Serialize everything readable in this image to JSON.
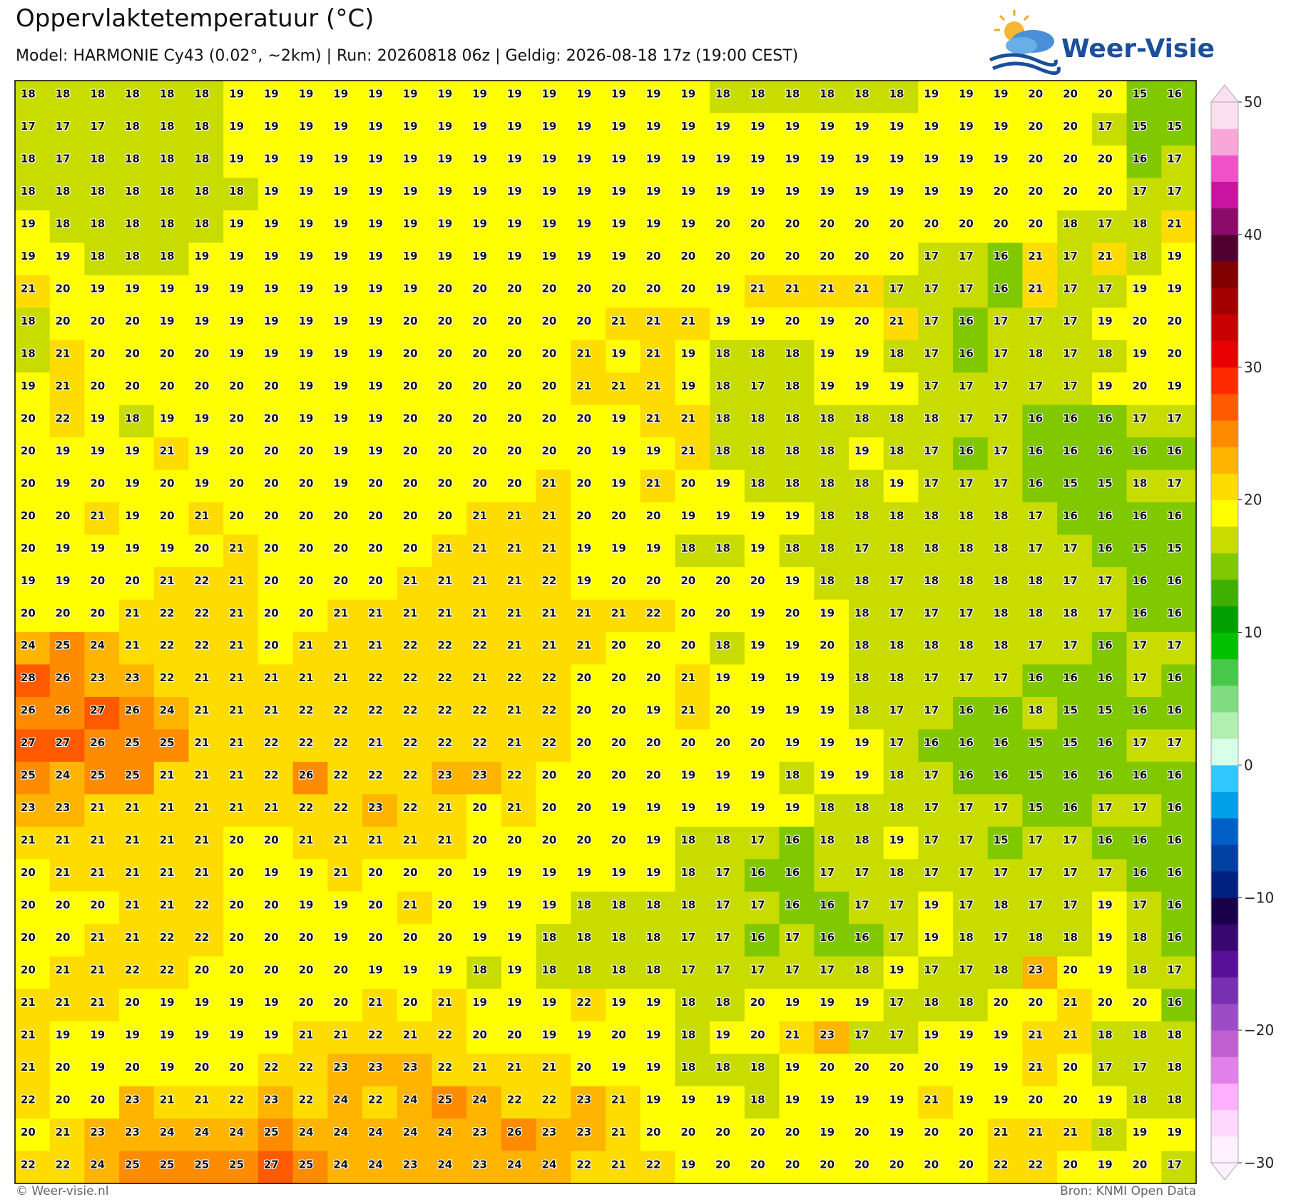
{
  "header": {
    "title": "Oppervlaktetemperatuur (°C)",
    "subtitle": "Model: HARMONIE Cy43 (0.02°, ~2km)  |  Run: 20260818 06z  |  Geldig: 2026-08-18 17z (19:00 CEST)",
    "logo": "Weer-Visie"
  },
  "grid": {
    "values": [
      [
        18,
        18,
        18,
        18,
        18,
        18,
        19,
        19,
        19,
        19,
        19,
        19,
        19,
        19,
        19,
        19,
        19,
        19,
        19,
        19,
        18,
        18,
        18,
        18,
        18,
        18,
        19,
        19,
        19,
        20,
        20,
        20,
        15,
        16
      ],
      [
        17,
        17,
        17,
        18,
        18,
        18,
        19,
        19,
        19,
        19,
        19,
        19,
        19,
        19,
        19,
        19,
        19,
        19,
        19,
        19,
        19,
        19,
        19,
        19,
        19,
        19,
        19,
        19,
        19,
        20,
        20,
        17,
        15,
        15
      ],
      [
        18,
        17,
        18,
        18,
        18,
        18,
        19,
        19,
        19,
        19,
        19,
        19,
        19,
        19,
        19,
        19,
        19,
        19,
        19,
        19,
        19,
        19,
        19,
        19,
        19,
        19,
        19,
        19,
        19,
        20,
        20,
        20,
        16,
        17
      ],
      [
        18,
        18,
        18,
        18,
        18,
        18,
        18,
        19,
        19,
        19,
        19,
        19,
        19,
        19,
        19,
        19,
        19,
        19,
        19,
        19,
        19,
        19,
        19,
        19,
        19,
        19,
        19,
        19,
        20,
        20,
        20,
        20,
        17,
        17
      ],
      [
        19,
        18,
        18,
        18,
        18,
        18,
        19,
        19,
        19,
        19,
        19,
        19,
        19,
        19,
        19,
        19,
        19,
        19,
        19,
        19,
        20,
        20,
        20,
        20,
        20,
        20,
        20,
        20,
        20,
        20,
        18,
        17,
        18,
        21
      ],
      [
        19,
        19,
        18,
        18,
        18,
        19,
        19,
        19,
        19,
        19,
        19,
        19,
        19,
        19,
        19,
        19,
        19,
        19,
        20,
        20,
        20,
        20,
        20,
        20,
        20,
        20,
        17,
        17,
        16,
        21,
        17,
        21,
        18,
        19
      ],
      [
        21,
        20,
        19,
        19,
        19,
        19,
        19,
        19,
        19,
        19,
        19,
        19,
        20,
        20,
        20,
        20,
        20,
        20,
        20,
        20,
        19,
        21,
        21,
        21,
        21,
        17,
        17,
        17,
        16,
        21,
        17,
        17,
        19,
        19
      ],
      [
        18,
        20,
        20,
        20,
        19,
        19,
        19,
        19,
        19,
        19,
        19,
        20,
        20,
        20,
        20,
        20,
        20,
        21,
        21,
        21,
        19,
        19,
        20,
        19,
        20,
        21,
        17,
        16,
        17,
        17,
        17,
        19,
        20,
        20
      ],
      [
        18,
        21,
        20,
        20,
        20,
        20,
        19,
        19,
        19,
        19,
        19,
        20,
        20,
        20,
        20,
        20,
        21,
        19,
        21,
        19,
        18,
        18,
        18,
        19,
        19,
        18,
        17,
        16,
        17,
        18,
        17,
        18,
        19,
        20
      ],
      [
        19,
        21,
        20,
        20,
        20,
        20,
        20,
        20,
        19,
        19,
        19,
        20,
        20,
        20,
        20,
        20,
        21,
        21,
        21,
        19,
        18,
        17,
        18,
        19,
        19,
        19,
        17,
        17,
        17,
        17,
        17,
        19,
        20,
        19
      ],
      [
        20,
        22,
        19,
        18,
        19,
        19,
        20,
        20,
        19,
        19,
        19,
        20,
        20,
        20,
        20,
        20,
        20,
        19,
        21,
        21,
        18,
        18,
        18,
        18,
        18,
        18,
        18,
        17,
        17,
        16,
        16,
        16,
        17,
        17
      ],
      [
        20,
        19,
        19,
        19,
        21,
        19,
        20,
        20,
        20,
        19,
        19,
        20,
        20,
        20,
        20,
        20,
        20,
        19,
        19,
        21,
        18,
        18,
        18,
        18,
        19,
        18,
        17,
        16,
        17,
        16,
        16,
        16,
        16,
        16
      ],
      [
        20,
        19,
        20,
        19,
        20,
        19,
        20,
        20,
        20,
        19,
        20,
        20,
        20,
        20,
        20,
        21,
        20,
        19,
        21,
        20,
        19,
        18,
        18,
        18,
        18,
        19,
        17,
        17,
        17,
        16,
        15,
        15,
        18,
        17
      ],
      [
        20,
        20,
        21,
        19,
        20,
        21,
        20,
        20,
        20,
        20,
        20,
        20,
        20,
        21,
        21,
        21,
        20,
        20,
        20,
        19,
        19,
        19,
        19,
        18,
        18,
        18,
        18,
        18,
        18,
        17,
        16,
        16,
        16,
        16
      ],
      [
        20,
        19,
        19,
        19,
        19,
        20,
        21,
        20,
        20,
        20,
        20,
        20,
        21,
        21,
        21,
        21,
        19,
        19,
        19,
        18,
        18,
        19,
        18,
        18,
        17,
        18,
        18,
        18,
        18,
        17,
        17,
        16,
        15,
        15
      ],
      [
        19,
        19,
        20,
        20,
        21,
        22,
        21,
        20,
        20,
        20,
        20,
        21,
        21,
        21,
        21,
        22,
        19,
        20,
        20,
        20,
        20,
        20,
        19,
        18,
        18,
        17,
        18,
        18,
        18,
        18,
        17,
        17,
        16,
        16
      ],
      [
        20,
        20,
        20,
        21,
        22,
        22,
        21,
        20,
        20,
        21,
        21,
        21,
        21,
        21,
        21,
        21,
        21,
        21,
        22,
        20,
        20,
        19,
        20,
        19,
        18,
        17,
        17,
        17,
        18,
        18,
        18,
        17,
        16,
        16
      ],
      [
        24,
        25,
        24,
        21,
        22,
        22,
        21,
        20,
        21,
        21,
        21,
        22,
        22,
        22,
        21,
        21,
        21,
        20,
        20,
        20,
        18,
        19,
        19,
        20,
        18,
        18,
        18,
        18,
        18,
        17,
        17,
        16,
        17,
        17
      ],
      [
        28,
        26,
        23,
        23,
        22,
        21,
        21,
        21,
        21,
        21,
        22,
        22,
        22,
        21,
        22,
        22,
        20,
        20,
        20,
        21,
        19,
        19,
        19,
        19,
        18,
        18,
        17,
        17,
        17,
        16,
        16,
        16,
        17,
        16
      ],
      [
        26,
        26,
        27,
        26,
        24,
        21,
        21,
        21,
        22,
        22,
        22,
        22,
        22,
        22,
        21,
        22,
        20,
        20,
        19,
        21,
        20,
        19,
        19,
        19,
        18,
        17,
        17,
        16,
        16,
        18,
        15,
        15,
        16,
        16
      ],
      [
        27,
        27,
        26,
        25,
        25,
        21,
        21,
        22,
        22,
        22,
        21,
        22,
        22,
        22,
        21,
        22,
        20,
        20,
        20,
        20,
        20,
        20,
        19,
        19,
        19,
        17,
        16,
        16,
        16,
        15,
        15,
        16,
        17,
        17
      ],
      [
        25,
        24,
        25,
        25,
        21,
        21,
        21,
        22,
        26,
        22,
        22,
        22,
        23,
        23,
        22,
        20,
        20,
        20,
        20,
        19,
        19,
        19,
        18,
        19,
        19,
        18,
        17,
        16,
        16,
        15,
        16,
        16,
        16,
        16
      ],
      [
        23,
        23,
        21,
        21,
        21,
        21,
        21,
        21,
        22,
        22,
        23,
        22,
        21,
        20,
        21,
        20,
        20,
        19,
        19,
        19,
        19,
        19,
        19,
        18,
        18,
        18,
        17,
        17,
        17,
        15,
        16,
        17,
        17,
        16
      ],
      [
        21,
        21,
        21,
        21,
        21,
        21,
        20,
        20,
        21,
        21,
        21,
        21,
        21,
        20,
        20,
        20,
        20,
        20,
        19,
        18,
        18,
        17,
        16,
        18,
        18,
        19,
        17,
        17,
        15,
        17,
        17,
        16,
        16,
        16
      ],
      [
        20,
        21,
        21,
        21,
        21,
        21,
        20,
        19,
        19,
        21,
        20,
        20,
        20,
        19,
        19,
        19,
        19,
        19,
        19,
        18,
        17,
        16,
        16,
        17,
        17,
        18,
        17,
        17,
        17,
        17,
        17,
        17,
        16,
        16
      ],
      [
        20,
        20,
        20,
        21,
        21,
        22,
        20,
        20,
        19,
        19,
        20,
        21,
        20,
        19,
        19,
        19,
        18,
        18,
        18,
        18,
        17,
        17,
        16,
        16,
        17,
        17,
        19,
        17,
        18,
        17,
        17,
        19,
        17,
        16
      ],
      [
        20,
        20,
        21,
        21,
        22,
        22,
        20,
        20,
        20,
        19,
        20,
        20,
        20,
        19,
        19,
        18,
        18,
        18,
        18,
        17,
        17,
        16,
        17,
        16,
        16,
        17,
        19,
        18,
        17,
        18,
        18,
        19,
        18,
        16
      ],
      [
        20,
        21,
        21,
        22,
        22,
        20,
        20,
        20,
        20,
        20,
        19,
        19,
        19,
        18,
        19,
        18,
        18,
        18,
        18,
        17,
        17,
        17,
        17,
        17,
        18,
        19,
        17,
        17,
        18,
        23,
        20,
        19,
        18,
        17
      ],
      [
        21,
        21,
        21,
        20,
        19,
        19,
        19,
        19,
        20,
        20,
        21,
        20,
        21,
        19,
        19,
        19,
        22,
        19,
        19,
        18,
        18,
        20,
        19,
        19,
        19,
        17,
        18,
        18,
        20,
        20,
        21,
        20,
        20,
        16
      ],
      [
        21,
        19,
        19,
        19,
        19,
        19,
        19,
        19,
        21,
        21,
        22,
        21,
        22,
        20,
        20,
        19,
        19,
        20,
        19,
        18,
        19,
        20,
        21,
        23,
        17,
        17,
        19,
        19,
        19,
        21,
        21,
        18,
        18,
        18
      ],
      [
        21,
        20,
        19,
        20,
        19,
        20,
        20,
        22,
        22,
        23,
        23,
        23,
        22,
        21,
        21,
        21,
        20,
        19,
        19,
        18,
        18,
        18,
        19,
        20,
        20,
        20,
        20,
        19,
        19,
        21,
        20,
        17,
        17,
        18
      ],
      [
        22,
        20,
        20,
        23,
        21,
        21,
        22,
        23,
        22,
        24,
        22,
        24,
        25,
        24,
        22,
        22,
        23,
        21,
        19,
        19,
        19,
        18,
        19,
        19,
        19,
        19,
        21,
        19,
        19,
        20,
        20,
        19,
        18,
        18
      ],
      [
        20,
        21,
        23,
        23,
        24,
        24,
        24,
        25,
        24,
        24,
        24,
        24,
        24,
        23,
        26,
        23,
        23,
        21,
        20,
        20,
        20,
        20,
        20,
        19,
        20,
        19,
        20,
        20,
        21,
        21,
        21,
        18,
        19,
        19
      ],
      [
        22,
        22,
        24,
        25,
        25,
        25,
        25,
        27,
        25,
        24,
        24,
        23,
        24,
        23,
        24,
        24,
        22,
        21,
        22,
        19,
        20,
        20,
        20,
        20,
        20,
        20,
        20,
        20,
        22,
        22,
        20,
        19,
        20,
        17
      ]
    ]
  },
  "colorbar": {
    "lim": [
      -30,
      50
    ],
    "ticks": [
      50,
      40,
      30,
      20,
      10,
      0,
      {
        "value": -10,
        "label": "−10"
      },
      {
        "value": -20,
        "label": "−20"
      },
      {
        "value": -30,
        "label": "−30"
      }
    ],
    "colors": [
      "#fff0ff",
      "#ffd8ff",
      "#ffb0ff",
      "#e080e8",
      "#c060d0",
      "#9c4cc4",
      "#7830b0",
      "#581098",
      "#380870",
      "#1a0048",
      "#002080",
      "#0040a0",
      "#0060c8",
      "#00a0e8",
      "#30c8ff",
      "#d8ffe8",
      "#b0f0b0",
      "#80dc80",
      "#48c848",
      "#00c000",
      "#00a000",
      "#40b000",
      "#80c800",
      "#c8dc00",
      "#ffff00",
      "#ffdc00",
      "#ffb400",
      "#ff8c00",
      "#ff5a00",
      "#ff2a00",
      "#e80000",
      "#c80000",
      "#a50000",
      "#800000",
      "#500030",
      "#8a0a6a",
      "#c814a0",
      "#f050c8",
      "#f8a8d8",
      "#fce0f0"
    ]
  },
  "footer": {
    "left": "© Weer-visie.nl",
    "right": "Bron: KNMI Open Data"
  }
}
